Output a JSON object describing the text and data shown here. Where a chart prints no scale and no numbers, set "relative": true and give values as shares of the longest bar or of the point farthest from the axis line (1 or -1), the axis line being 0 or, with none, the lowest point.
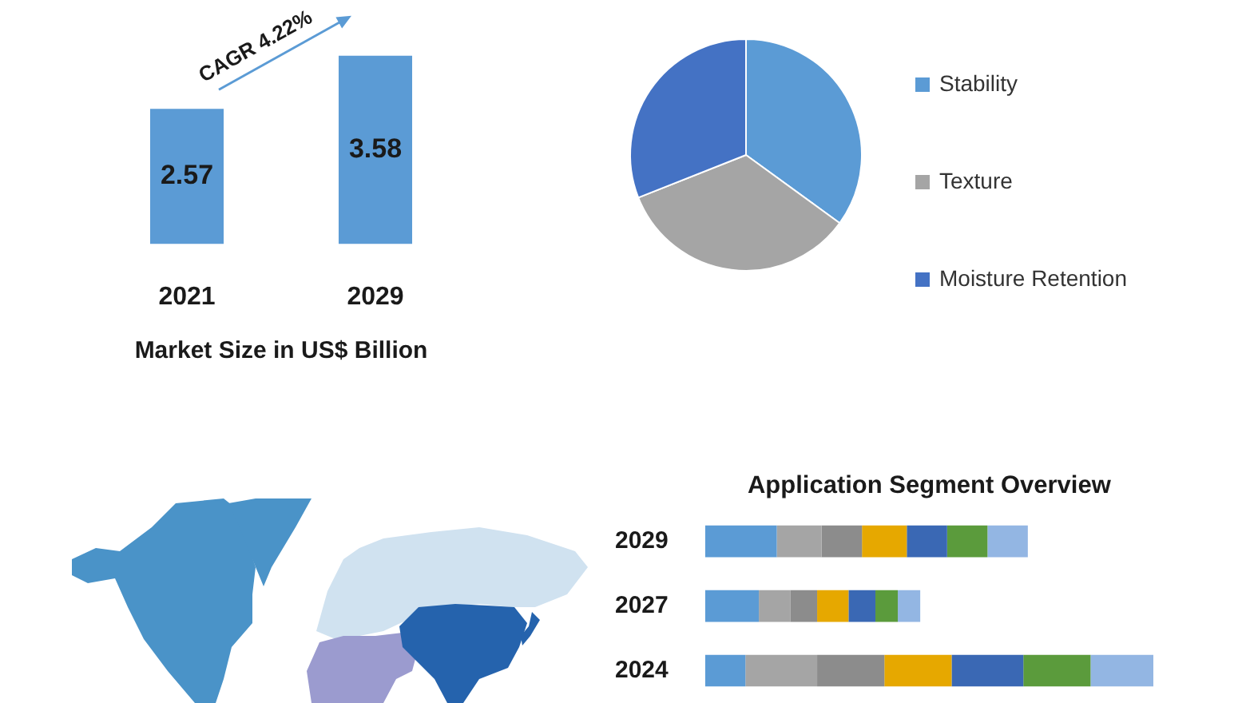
{
  "chart_data": [
    {
      "type": "bar",
      "categories": [
        "2021",
        "2029"
      ],
      "values": [
        2.57,
        3.58
      ],
      "color": "#5b9bd5",
      "data_labels": true,
      "xlabel": "Market Size in US$ Billion",
      "annotations": [
        "CAGR 4.22%"
      ]
    },
    {
      "type": "pie",
      "categories": [
        "Stability",
        "Texture",
        "Moisture Retention"
      ],
      "values": [
        35,
        34,
        31
      ],
      "colors": [
        "#5b9bd5",
        "#a5a5a5",
        "#4472c4"
      ],
      "legend": "right"
    },
    {
      "type": "bar",
      "title": "Application Segment Overview",
      "orientation": "horizontal",
      "stacked": true,
      "relative": true,
      "categories": [
        "2029",
        "2027",
        "2024"
      ],
      "series": [
        {
          "color": "#5b9bd5",
          "values": [
            0.16,
            0.12,
            0.09
          ]
        },
        {
          "color": "#a5a5a5",
          "values": [
            0.1,
            0.07,
            0.16
          ]
        },
        {
          "color": "#8c8c8c",
          "values": [
            0.09,
            0.06,
            0.15
          ]
        },
        {
          "color": "#e6a800",
          "values": [
            0.1,
            0.07,
            0.15
          ]
        },
        {
          "color": "#3a68b4",
          "values": [
            0.09,
            0.06,
            0.16
          ]
        },
        {
          "color": "#5b9b3c",
          "values": [
            0.09,
            0.05,
            0.15
          ]
        },
        {
          "color": "#93b6e3",
          "values": [
            0.09,
            0.05,
            0.14
          ]
        }
      ]
    }
  ]
}
